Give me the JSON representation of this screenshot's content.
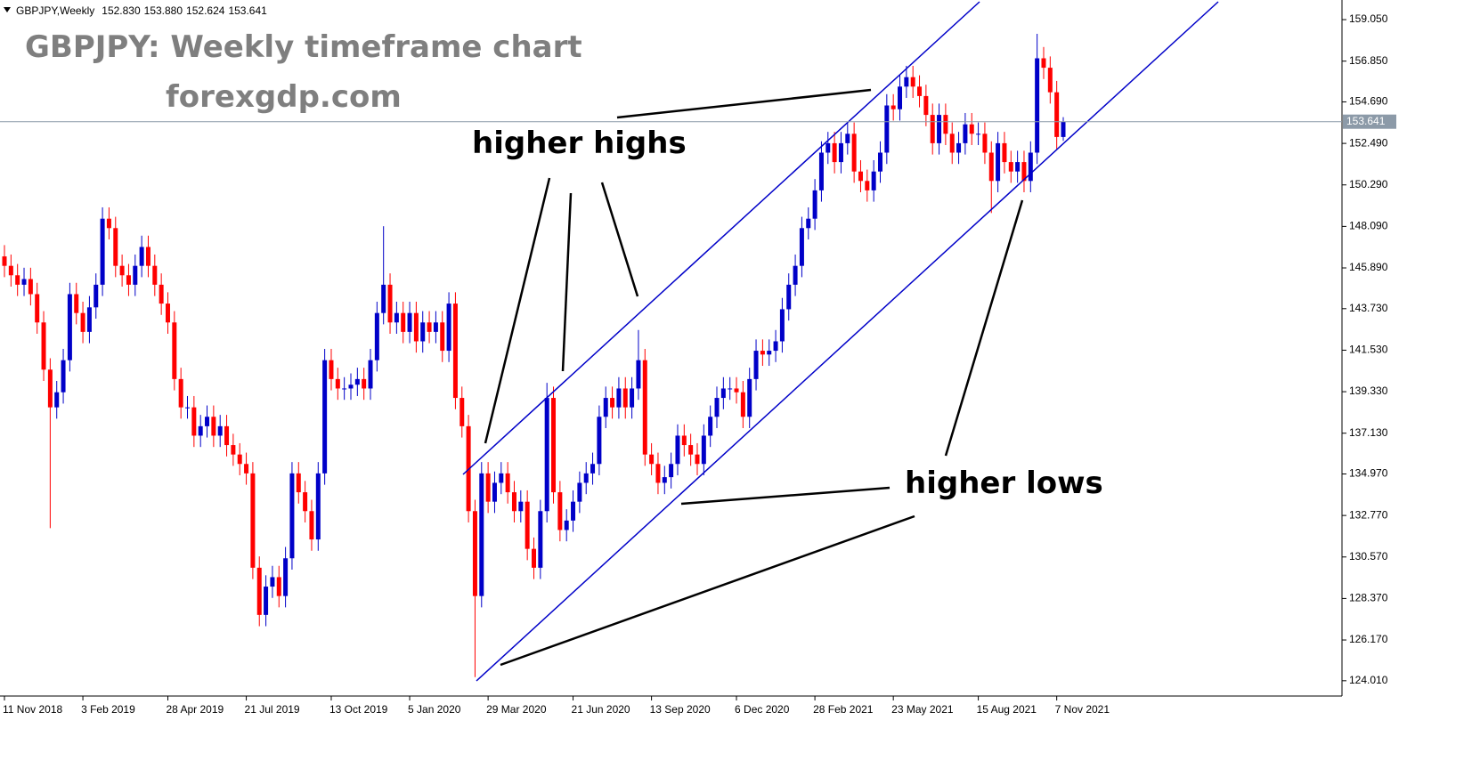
{
  "chart_data": {
    "type": "candlestick",
    "symbol": "GBPJPY,Weekly",
    "header_labels": [
      "152.830",
      "153.880",
      "152.624",
      "153.641"
    ],
    "title": "GBPJPY: Weekly timeframe chart",
    "subtitle": "forexgdp.com",
    "annotations": [
      "higher highs",
      "higher lows"
    ],
    "up_color": "#0000c8",
    "down_color": "#ff0000",
    "last_price": {
      "value": 153.641,
      "label": "153.641"
    },
    "ylim": [
      123.2,
      160.09
    ],
    "yticks": [
      {
        "value": 159.05,
        "label": "159.050"
      },
      {
        "value": 156.85,
        "label": "156.850"
      },
      {
        "value": 154.69,
        "label": "154.690"
      },
      {
        "value": 152.49,
        "label": "152.490"
      },
      {
        "value": 150.29,
        "label": "150.290"
      },
      {
        "value": 148.09,
        "label": "148.090"
      },
      {
        "value": 145.89,
        "label": "145.890"
      },
      {
        "value": 143.73,
        "label": "143.730"
      },
      {
        "value": 141.53,
        "label": "141.530"
      },
      {
        "value": 139.33,
        "label": "139.330"
      },
      {
        "value": 137.13,
        "label": "137.130"
      },
      {
        "value": 134.97,
        "label": "134.970"
      },
      {
        "value": 132.77,
        "label": "132.770"
      },
      {
        "value": 130.57,
        "label": "130.570"
      },
      {
        "value": 128.37,
        "label": "128.370"
      },
      {
        "value": 126.17,
        "label": "126.170"
      },
      {
        "value": 124.01,
        "label": "124.010"
      }
    ],
    "grid": false,
    "categories": [
      "11 Nov 2018",
      null,
      null,
      null,
      null,
      null,
      null,
      null,
      null,
      null,
      null,
      null,
      "3 Feb 2019",
      null,
      null,
      null,
      null,
      null,
      null,
      null,
      null,
      null,
      null,
      null,
      null,
      "28 Apr 2019",
      null,
      null,
      null,
      null,
      null,
      null,
      null,
      null,
      null,
      null,
      null,
      "21 Jul 2019",
      null,
      null,
      null,
      null,
      null,
      null,
      null,
      null,
      null,
      null,
      null,
      null,
      "13 Oct 2019",
      null,
      null,
      null,
      null,
      null,
      null,
      null,
      null,
      null,
      null,
      null,
      "5 Jan 2020",
      null,
      null,
      null,
      null,
      null,
      null,
      null,
      null,
      null,
      null,
      null,
      "29 Mar 2020",
      null,
      null,
      null,
      null,
      null,
      null,
      null,
      null,
      null,
      null,
      null,
      null,
      "21 Jun 2020",
      null,
      null,
      null,
      null,
      null,
      null,
      null,
      null,
      null,
      null,
      null,
      "13 Sep 2020",
      null,
      null,
      null,
      null,
      null,
      null,
      null,
      null,
      null,
      null,
      null,
      null,
      "6 Dec 2020",
      null,
      null,
      null,
      null,
      null,
      null,
      null,
      null,
      null,
      null,
      null,
      "28 Feb 2021",
      null,
      null,
      null,
      null,
      null,
      null,
      null,
      null,
      null,
      null,
      null,
      "23 May 2021",
      null,
      null,
      null,
      null,
      null,
      null,
      null,
      null,
      null,
      null,
      null,
      null,
      "15 Aug 2021",
      null,
      null,
      null,
      null,
      null,
      null,
      null,
      null,
      null,
      null,
      null,
      "7 Nov 2021",
      null
    ],
    "open": [
      146.5,
      146.0,
      145.5,
      145.0,
      145.3,
      144.5,
      143.0,
      140.5,
      138.5,
      139.3,
      141.0,
      144.5,
      143.5,
      142.5,
      143.8,
      145.0,
      148.5,
      148.0,
      146.0,
      145.5,
      145.0,
      146.0,
      147.0,
      146.0,
      145.0,
      144.0,
      143.0,
      140.0,
      138.5,
      138.5,
      137.0,
      137.5,
      138.0,
      137.0,
      137.5,
      136.5,
      136.0,
      135.5,
      135.0,
      130.0,
      127.5,
      129.0,
      129.5,
      128.5,
      130.5,
      135.0,
      134.0,
      133.0,
      131.5,
      135.0,
      141.0,
      140.0,
      139.5,
      139.5,
      139.7,
      140.0,
      139.5,
      141.0,
      143.5,
      145.0,
      143.0,
      143.5,
      142.5,
      143.5,
      142.0,
      143.0,
      142.5,
      143.0,
      141.5,
      144.0,
      139.0,
      137.5,
      133.0,
      128.5,
      135.0,
      133.5,
      134.5,
      135.0,
      134.0,
      133.0,
      133.5,
      131.0,
      130.0,
      133.0,
      139.0,
      134.0,
      132.0,
      132.5,
      133.5,
      134.5,
      135.0,
      135.5,
      138.0,
      139.0,
      138.5,
      139.5,
      138.5,
      139.5,
      141.0,
      136.0,
      135.5,
      134.5,
      134.8,
      135.5,
      137.0,
      136.5,
      136.0,
      135.5,
      137.0,
      138.0,
      139.0,
      139.5,
      139.5,
      139.3,
      138.0,
      140.0,
      141.5,
      141.3,
      141.5,
      142.0,
      143.7,
      145.0,
      146.0,
      148.0,
      148.5,
      150.0,
      152.0,
      152.5,
      151.5,
      152.5,
      153.0,
      151.0,
      150.5,
      150.0,
      151.0,
      152.0,
      154.5,
      154.3,
      155.5,
      156.0,
      155.5,
      155.0,
      154.0,
      152.5,
      154.0,
      153.0,
      152.0,
      152.5,
      153.5,
      153.0,
      153.0,
      152.0,
      150.5,
      152.5,
      151.5,
      151.0,
      151.5,
      150.5,
      152.0,
      157.0,
      156.5,
      155.2,
      152.83
    ],
    "high": [
      147.1,
      146.6,
      146.1,
      145.9,
      145.9,
      145.1,
      143.6,
      141.1,
      139.9,
      141.6,
      145.1,
      145.1,
      144.1,
      144.4,
      145.6,
      149.1,
      149.1,
      148.6,
      146.6,
      146.1,
      146.6,
      147.6,
      147.6,
      146.6,
      145.6,
      144.6,
      143.6,
      140.6,
      139.1,
      139.1,
      138.1,
      138.6,
      138.6,
      138.1,
      138.1,
      137.1,
      136.6,
      136.1,
      135.6,
      130.6,
      129.6,
      130.1,
      130.1,
      131.1,
      135.6,
      135.6,
      134.6,
      133.6,
      135.6,
      141.6,
      141.6,
      140.6,
      140.1,
      140.3,
      140.6,
      140.6,
      141.6,
      144.1,
      148.1,
      145.6,
      144.1,
      144.1,
      144.1,
      144.1,
      143.6,
      143.6,
      143.6,
      143.6,
      144.6,
      144.6,
      139.6,
      138.1,
      133.6,
      135.6,
      135.6,
      135.1,
      135.6,
      135.6,
      134.6,
      134.1,
      134.1,
      131.6,
      133.6,
      139.8,
      139.6,
      134.6,
      133.1,
      134.1,
      135.1,
      135.6,
      136.1,
      138.6,
      139.6,
      139.6,
      140.1,
      140.1,
      140.1,
      142.6,
      141.6,
      136.6,
      136.1,
      135.4,
      136.1,
      137.6,
      137.6,
      137.1,
      136.6,
      137.6,
      138.6,
      139.6,
      140.1,
      140.1,
      140.1,
      139.9,
      140.6,
      142.1,
      142.1,
      142.1,
      142.6,
      144.3,
      145.6,
      146.6,
      148.6,
      149.1,
      150.6,
      152.6,
      153.1,
      153.1,
      153.1,
      153.6,
      153.6,
      151.6,
      151.1,
      151.6,
      152.6,
      155.1,
      155.1,
      156.1,
      156.6,
      156.6,
      156.1,
      155.6,
      154.6,
      154.6,
      154.6,
      153.6,
      153.1,
      154.1,
      154.1,
      153.6,
      153.6,
      152.6,
      153.1,
      153.1,
      152.1,
      152.1,
      152.1,
      152.6,
      158.3,
      157.6,
      157.1,
      155.8,
      153.88
    ],
    "low": [
      145.4,
      144.9,
      144.4,
      144.4,
      143.9,
      142.4,
      139.9,
      132.1,
      137.9,
      138.7,
      140.4,
      142.9,
      141.9,
      141.9,
      143.2,
      144.4,
      147.4,
      145.4,
      144.9,
      144.4,
      144.4,
      145.4,
      145.4,
      144.4,
      143.4,
      142.4,
      139.4,
      137.9,
      137.9,
      136.4,
      136.4,
      136.9,
      136.4,
      136.4,
      135.9,
      135.4,
      134.9,
      134.4,
      129.4,
      126.9,
      126.9,
      128.4,
      127.9,
      127.9,
      129.9,
      133.4,
      132.4,
      130.9,
      130.9,
      134.4,
      139.4,
      138.9,
      138.9,
      138.9,
      139.1,
      138.9,
      138.9,
      140.4,
      142.9,
      142.4,
      142.4,
      141.9,
      141.9,
      141.4,
      141.4,
      141.9,
      141.9,
      140.9,
      140.9,
      138.4,
      136.9,
      132.4,
      124.2,
      127.9,
      132.9,
      132.9,
      133.9,
      133.4,
      132.4,
      132.4,
      130.4,
      129.4,
      129.4,
      132.4,
      133.4,
      131.4,
      131.4,
      131.9,
      132.9,
      133.9,
      134.4,
      134.9,
      137.4,
      137.9,
      137.9,
      137.9,
      137.9,
      138.9,
      135.4,
      134.9,
      133.9,
      133.9,
      134.2,
      134.9,
      135.9,
      135.4,
      134.9,
      134.9,
      136.4,
      137.4,
      138.4,
      138.9,
      138.7,
      137.4,
      137.4,
      139.4,
      140.7,
      140.7,
      140.9,
      141.4,
      143.1,
      144.4,
      145.4,
      147.4,
      147.9,
      149.4,
      151.4,
      150.9,
      150.9,
      151.9,
      150.4,
      149.9,
      149.4,
      149.4,
      150.4,
      151.4,
      153.7,
      153.7,
      154.9,
      154.9,
      154.4,
      153.4,
      151.9,
      151.9,
      152.4,
      151.4,
      151.4,
      151.9,
      152.4,
      152.4,
      151.4,
      148.8,
      149.9,
      150.9,
      150.4,
      150.4,
      149.9,
      149.9,
      151.4,
      155.9,
      154.6,
      152.2,
      152.624
    ],
    "close": [
      146.0,
      145.5,
      145.0,
      145.3,
      144.5,
      143.0,
      140.5,
      138.5,
      139.3,
      141.0,
      144.5,
      143.5,
      142.5,
      143.8,
      145.0,
      148.5,
      148.0,
      146.0,
      145.5,
      145.0,
      146.0,
      147.0,
      146.0,
      145.0,
      144.0,
      143.0,
      140.0,
      138.5,
      138.5,
      137.0,
      137.5,
      138.0,
      137.0,
      137.5,
      136.5,
      136.0,
      135.5,
      135.0,
      130.0,
      127.5,
      129.0,
      129.5,
      128.5,
      130.5,
      135.0,
      134.0,
      133.0,
      131.5,
      135.0,
      141.0,
      140.0,
      139.5,
      139.5,
      139.7,
      140.0,
      139.5,
      141.0,
      143.5,
      145.0,
      143.0,
      143.5,
      142.5,
      143.5,
      142.0,
      143.0,
      142.5,
      143.0,
      141.5,
      144.0,
      139.0,
      137.5,
      133.0,
      128.5,
      135.0,
      133.5,
      134.5,
      135.0,
      134.0,
      133.0,
      133.5,
      131.0,
      130.0,
      133.0,
      139.0,
      134.0,
      132.0,
      132.5,
      133.5,
      134.5,
      135.0,
      135.5,
      138.0,
      139.0,
      138.5,
      139.5,
      138.5,
      139.5,
      141.0,
      136.0,
      135.5,
      134.5,
      134.8,
      135.5,
      137.0,
      136.5,
      136.0,
      135.5,
      137.0,
      138.0,
      139.0,
      139.5,
      139.5,
      139.3,
      138.0,
      140.0,
      141.5,
      141.3,
      141.5,
      142.0,
      143.7,
      145.0,
      146.0,
      148.0,
      148.5,
      150.0,
      152.0,
      152.5,
      151.5,
      152.5,
      153.0,
      151.0,
      150.5,
      150.0,
      151.0,
      152.0,
      154.5,
      154.3,
      155.5,
      156.0,
      155.5,
      155.0,
      154.0,
      152.5,
      154.0,
      153.0,
      152.0,
      152.5,
      153.5,
      153.0,
      153.0,
      152.0,
      150.5,
      152.5,
      151.5,
      151.0,
      151.5,
      150.5,
      152.0,
      157.0,
      156.5,
      155.2,
      152.83,
      153.641
    ]
  }
}
